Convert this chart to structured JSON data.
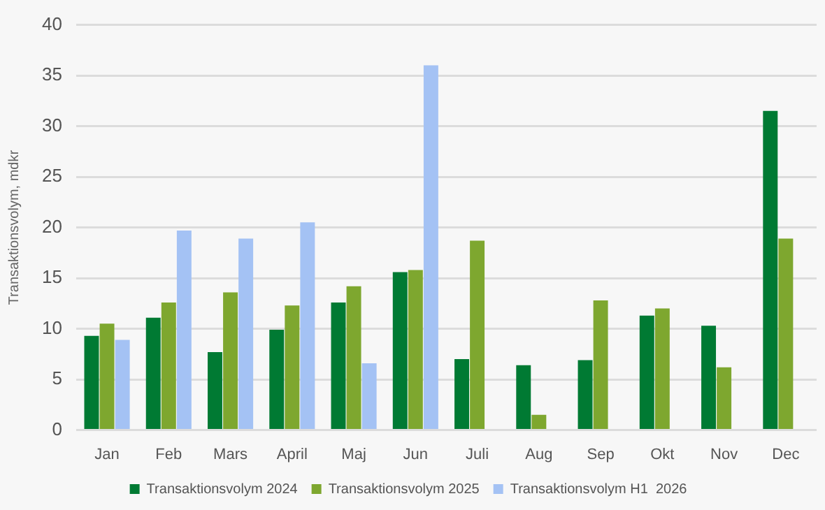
{
  "chart_data": {
    "type": "bar",
    "ylabel": "Transaktionsvolym, mdkr",
    "categories": [
      "Jan",
      "Feb",
      "Mars",
      "April",
      "Maj",
      "Jun",
      "Juli",
      "Aug",
      "Sep",
      "Okt",
      "Nov",
      "Dec"
    ],
    "series": [
      {
        "name": "Transaktionsvolym 2024",
        "color": "#007a33",
        "values": [
          9.3,
          11.1,
          7.7,
          9.9,
          12.6,
          15.6,
          7.0,
          6.4,
          6.9,
          11.3,
          10.3,
          31.5
        ]
      },
      {
        "name": "Transaktionsvolym 2025",
        "color": "#7ea72f",
        "values": [
          10.5,
          12.6,
          13.6,
          12.3,
          14.2,
          15.8,
          18.7,
          1.5,
          12.8,
          12.0,
          6.2,
          18.9
        ]
      },
      {
        "name": "Transaktionsvolym H1  2026",
        "color": "#a4c2f4",
        "values": [
          8.9,
          19.7,
          18.9,
          20.5,
          6.6,
          36.0,
          null,
          null,
          null,
          null,
          null,
          null
        ]
      }
    ],
    "ylim": [
      0,
      40
    ],
    "yticks": [
      0,
      5,
      10,
      15,
      20,
      25,
      30,
      35,
      40
    ],
    "grid": "y",
    "legend": "bottom"
  }
}
